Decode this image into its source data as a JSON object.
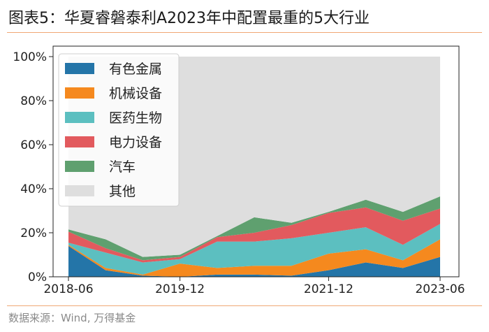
{
  "title": "图表5：华夏睿磐泰利A2023年中配置最重的5大行业",
  "source": "数据来源：Wind, 万得基金",
  "chart_data": {
    "type": "area",
    "stacked": true,
    "x": [
      "2018-06",
      "2018-12",
      "2019-06",
      "2019-12",
      "2020-06",
      "2020-12",
      "2021-06",
      "2021-12",
      "2022-06",
      "2022-12",
      "2023-06"
    ],
    "x_ticks": [
      "2018-06",
      "2019-12",
      "2021-12",
      "2023-06"
    ],
    "y_ticks": [
      "0%",
      "20%",
      "40%",
      "60%",
      "80%",
      "100%"
    ],
    "ylim": [
      0,
      100
    ],
    "legend_position": "upper-left",
    "series": [
      {
        "name": "有色金属",
        "color": "#2475a8",
        "values": [
          14,
          3,
          0.5,
          0,
          1,
          1,
          0.5,
          3,
          6.5,
          4,
          9
        ]
      },
      {
        "name": "机械设备",
        "color": "#f5891e",
        "values": [
          0.5,
          1,
          0.5,
          6,
          3,
          4,
          4.5,
          7.5,
          6,
          3.5,
          8
        ]
      },
      {
        "name": "医药生物",
        "color": "#5cbfc0",
        "values": [
          1,
          7,
          5.5,
          2,
          12,
          11,
          12.5,
          9.5,
          10,
          7,
          7
        ]
      },
      {
        "name": "电力设备",
        "color": "#e25a5e",
        "values": [
          5,
          2,
          1,
          1,
          2,
          4,
          6,
          9,
          9,
          11,
          7
        ]
      },
      {
        "name": "汽车",
        "color": "#5fa06f",
        "values": [
          1,
          4,
          1.5,
          1,
          0.5,
          7,
          1,
          0.5,
          3.5,
          4,
          5.5
        ]
      },
      {
        "name": "其他",
        "color": "#dedede",
        "values": [
          78.5,
          83,
          91,
          90,
          81.5,
          73,
          75.5,
          70.5,
          65,
          70.5,
          63.5
        ]
      }
    ]
  }
}
